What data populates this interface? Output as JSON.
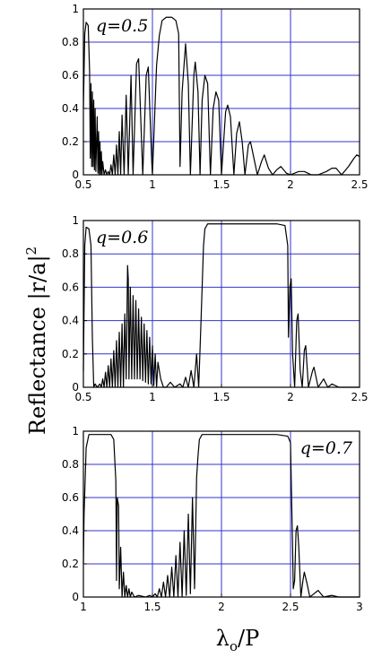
{
  "ylabel": {
    "main": "Reflectance ",
    "expr": "|r/a|",
    "sup": "2"
  },
  "xlabel": {
    "main": "λ",
    "sub": "o",
    "tail": "/P"
  },
  "chart_data": [
    {
      "type": "line",
      "label": "q=0.5",
      "label_position": "top-left",
      "xlim": [
        0.5,
        2.5
      ],
      "ylim": [
        0,
        1
      ],
      "xticks": [
        0.5,
        1,
        1.5,
        2,
        2.5
      ],
      "xtick_labels": [
        "0.5",
        "1",
        "1.5",
        "2",
        "2.5"
      ],
      "yticks": [
        0,
        0.2,
        0.4,
        0.6,
        0.8,
        1
      ],
      "ytick_labels": [
        "0",
        "0.2",
        "0.4",
        "0.6",
        "0.8",
        "1"
      ],
      "grid": true,
      "points": [
        [
          0.5,
          0.4
        ],
        [
          0.51,
          0.85
        ],
        [
          0.52,
          0.92
        ],
        [
          0.535,
          0.9
        ],
        [
          0.545,
          0.62
        ],
        [
          0.55,
          0.1
        ],
        [
          0.555,
          0.55
        ],
        [
          0.56,
          0.05
        ],
        [
          0.565,
          0.5
        ],
        [
          0.57,
          0.05
        ],
        [
          0.575,
          0.45
        ],
        [
          0.58,
          0.03
        ],
        [
          0.585,
          0.4
        ],
        [
          0.59,
          0.02
        ],
        [
          0.6,
          0.35
        ],
        [
          0.605,
          0.01
        ],
        [
          0.61,
          0.26
        ],
        [
          0.615,
          0.0
        ],
        [
          0.62,
          0.2
        ],
        [
          0.625,
          0.0
        ],
        [
          0.63,
          0.14
        ],
        [
          0.635,
          0.0
        ],
        [
          0.64,
          0.08
        ],
        [
          0.65,
          0.0
        ],
        [
          0.66,
          0.03
        ],
        [
          0.67,
          0.0
        ],
        [
          0.68,
          0.02
        ],
        [
          0.69,
          0.0
        ],
        [
          0.7,
          0.06
        ],
        [
          0.71,
          0.0
        ],
        [
          0.72,
          0.12
        ],
        [
          0.73,
          0.0
        ],
        [
          0.74,
          0.18
        ],
        [
          0.75,
          0.0
        ],
        [
          0.76,
          0.26
        ],
        [
          0.77,
          0.0
        ],
        [
          0.78,
          0.36
        ],
        [
          0.795,
          0.0
        ],
        [
          0.81,
          0.48
        ],
        [
          0.825,
          0.0
        ],
        [
          0.845,
          0.6
        ],
        [
          0.86,
          0.0
        ],
        [
          0.885,
          0.67
        ],
        [
          0.9,
          0.7
        ],
        [
          0.93,
          0.0
        ],
        [
          0.955,
          0.6
        ],
        [
          0.97,
          0.65
        ],
        [
          0.995,
          0.08
        ],
        [
          1.0,
          0.0
        ],
        [
          1.03,
          0.66
        ],
        [
          1.05,
          0.84
        ],
        [
          1.07,
          0.93
        ],
        [
          1.1,
          0.95
        ],
        [
          1.14,
          0.95
        ],
        [
          1.17,
          0.93
        ],
        [
          1.19,
          0.85
        ],
        [
          1.2,
          0.05
        ],
        [
          1.215,
          0.5
        ],
        [
          1.24,
          0.79
        ],
        [
          1.26,
          0.55
        ],
        [
          1.275,
          0.0
        ],
        [
          1.3,
          0.6
        ],
        [
          1.31,
          0.68
        ],
        [
          1.33,
          0.5
        ],
        [
          1.345,
          0.0
        ],
        [
          1.36,
          0.45
        ],
        [
          1.38,
          0.6
        ],
        [
          1.4,
          0.55
        ],
        [
          1.42,
          0.0
        ],
        [
          1.44,
          0.4
        ],
        [
          1.46,
          0.5
        ],
        [
          1.48,
          0.45
        ],
        [
          1.5,
          0.0
        ],
        [
          1.53,
          0.38
        ],
        [
          1.545,
          0.42
        ],
        [
          1.565,
          0.35
        ],
        [
          1.59,
          0.0
        ],
        [
          1.61,
          0.25
        ],
        [
          1.63,
          0.32
        ],
        [
          1.65,
          0.2
        ],
        [
          1.67,
          0.0
        ],
        [
          1.695,
          0.18
        ],
        [
          1.71,
          0.2
        ],
        [
          1.735,
          0.1
        ],
        [
          1.76,
          0.0
        ],
        [
          1.79,
          0.08
        ],
        [
          1.81,
          0.12
        ],
        [
          1.84,
          0.04
        ],
        [
          1.87,
          0.0
        ],
        [
          1.9,
          0.03
        ],
        [
          1.93,
          0.05
        ],
        [
          1.97,
          0.01
        ],
        [
          2.0,
          0.0
        ],
        [
          2.06,
          0.02
        ],
        [
          2.1,
          0.02
        ],
        [
          2.15,
          0.0
        ],
        [
          2.2,
          0.0
        ],
        [
          2.26,
          0.02
        ],
        [
          2.3,
          0.04
        ],
        [
          2.33,
          0.04
        ],
        [
          2.37,
          0.0
        ],
        [
          2.42,
          0.05
        ],
        [
          2.46,
          0.1
        ],
        [
          2.48,
          0.12
        ],
        [
          2.5,
          0.11
        ]
      ]
    },
    {
      "type": "line",
      "label": "q=0.6",
      "label_position": "top-left",
      "xlim": [
        0.5,
        2.5
      ],
      "ylim": [
        0,
        1
      ],
      "xticks": [
        0.5,
        1,
        1.5,
        2,
        2.5
      ],
      "xtick_labels": [
        "0.5",
        "1",
        "1.5",
        "2",
        "2.5"
      ],
      "yticks": [
        0,
        0.2,
        0.4,
        0.6,
        0.8,
        1
      ],
      "ytick_labels": [
        "0",
        "0.2",
        "0.4",
        "0.6",
        "0.8",
        "1"
      ],
      "grid": true,
      "points": [
        [
          0.5,
          0.1
        ],
        [
          0.51,
          0.85
        ],
        [
          0.52,
          0.96
        ],
        [
          0.54,
          0.95
        ],
        [
          0.555,
          0.85
        ],
        [
          0.565,
          0.3
        ],
        [
          0.575,
          0.0
        ],
        [
          0.585,
          0.02
        ],
        [
          0.6,
          0.0
        ],
        [
          0.62,
          0.02
        ],
        [
          0.63,
          0.0
        ],
        [
          0.64,
          0.05
        ],
        [
          0.65,
          0.0
        ],
        [
          0.66,
          0.09
        ],
        [
          0.67,
          0.0
        ],
        [
          0.68,
          0.13
        ],
        [
          0.69,
          0.0
        ],
        [
          0.7,
          0.17
        ],
        [
          0.71,
          0.0
        ],
        [
          0.72,
          0.22
        ],
        [
          0.73,
          0.0
        ],
        [
          0.74,
          0.28
        ],
        [
          0.75,
          0.0
        ],
        [
          0.76,
          0.33
        ],
        [
          0.77,
          0.0
        ],
        [
          0.78,
          0.38
        ],
        [
          0.79,
          0.0
        ],
        [
          0.8,
          0.44
        ],
        [
          0.81,
          0.05
        ],
        [
          0.82,
          0.73
        ],
        [
          0.825,
          0.65
        ],
        [
          0.83,
          0.05
        ],
        [
          0.84,
          0.6
        ],
        [
          0.85,
          0.05
        ],
        [
          0.86,
          0.55
        ],
        [
          0.87,
          0.05
        ],
        [
          0.88,
          0.52
        ],
        [
          0.89,
          0.05
        ],
        [
          0.9,
          0.47
        ],
        [
          0.91,
          0.05
        ],
        [
          0.92,
          0.42
        ],
        [
          0.93,
          0.04
        ],
        [
          0.94,
          0.38
        ],
        [
          0.95,
          0.03
        ],
        [
          0.96,
          0.34
        ],
        [
          0.97,
          0.02
        ],
        [
          0.98,
          0.3
        ],
        [
          0.99,
          0.02
        ],
        [
          1.0,
          0.25
        ],
        [
          1.01,
          0.01
        ],
        [
          1.02,
          0.2
        ],
        [
          1.03,
          0.0
        ],
        [
          1.04,
          0.15
        ],
        [
          1.06,
          0.05
        ],
        [
          1.08,
          0.0
        ],
        [
          1.1,
          0.0
        ],
        [
          1.13,
          0.03
        ],
        [
          1.16,
          0.0
        ],
        [
          1.2,
          0.02
        ],
        [
          1.22,
          0.0
        ],
        [
          1.24,
          0.06
        ],
        [
          1.26,
          0.0
        ],
        [
          1.28,
          0.1
        ],
        [
          1.3,
          0.0
        ],
        [
          1.32,
          0.2
        ],
        [
          1.335,
          0.0
        ],
        [
          1.35,
          0.35
        ],
        [
          1.36,
          0.6
        ],
        [
          1.37,
          0.85
        ],
        [
          1.38,
          0.95
        ],
        [
          1.4,
          0.98
        ],
        [
          1.5,
          0.98
        ],
        [
          1.7,
          0.98
        ],
        [
          1.9,
          0.98
        ],
        [
          1.96,
          0.97
        ],
        [
          1.98,
          0.85
        ],
        [
          1.985,
          0.3
        ],
        [
          1.995,
          0.6
        ],
        [
          2.005,
          0.65
        ],
        [
          2.015,
          0.2
        ],
        [
          2.03,
          0.0
        ],
        [
          2.045,
          0.4
        ],
        [
          2.055,
          0.44
        ],
        [
          2.07,
          0.1
        ],
        [
          2.085,
          0.0
        ],
        [
          2.1,
          0.22
        ],
        [
          2.11,
          0.25
        ],
        [
          2.13,
          0.0
        ],
        [
          2.16,
          0.1
        ],
        [
          2.17,
          0.12
        ],
        [
          2.2,
          0.0
        ],
        [
          2.24,
          0.05
        ],
        [
          2.27,
          0.0
        ],
        [
          2.3,
          0.02
        ],
        [
          2.35,
          0.0
        ],
        [
          2.5,
          0.0
        ]
      ]
    },
    {
      "type": "line",
      "label": "q=0.7",
      "label_position": "top-right",
      "xlim": [
        1,
        3
      ],
      "ylim": [
        0,
        1
      ],
      "xticks": [
        1,
        1.5,
        2,
        2.5,
        3
      ],
      "xtick_labels": [
        "1",
        "1.5",
        "2",
        "2.5",
        "3"
      ],
      "yticks": [
        0,
        0.2,
        0.4,
        0.6,
        0.8,
        1
      ],
      "ytick_labels": [
        "0",
        "0.2",
        "0.4",
        "0.6",
        "0.8",
        "1"
      ],
      "grid": true,
      "points": [
        [
          1.0,
          0.2
        ],
        [
          1.005,
          0.5
        ],
        [
          1.02,
          0.9
        ],
        [
          1.04,
          0.98
        ],
        [
          1.1,
          0.98
        ],
        [
          1.2,
          0.98
        ],
        [
          1.22,
          0.95
        ],
        [
          1.235,
          0.7
        ],
        [
          1.24,
          0.1
        ],
        [
          1.245,
          0.6
        ],
        [
          1.255,
          0.55
        ],
        [
          1.26,
          0.05
        ],
        [
          1.27,
          0.3
        ],
        [
          1.28,
          0.0
        ],
        [
          1.29,
          0.15
        ],
        [
          1.3,
          0.0
        ],
        [
          1.31,
          0.07
        ],
        [
          1.32,
          0.0
        ],
        [
          1.33,
          0.05
        ],
        [
          1.34,
          0.0
        ],
        [
          1.35,
          0.03
        ],
        [
          1.37,
          0.0
        ],
        [
          1.4,
          0.01
        ],
        [
          1.45,
          0.0
        ],
        [
          1.48,
          0.01
        ],
        [
          1.5,
          0.0
        ],
        [
          1.52,
          0.02
        ],
        [
          1.535,
          0.0
        ],
        [
          1.55,
          0.05
        ],
        [
          1.565,
          0.0
        ],
        [
          1.58,
          0.09
        ],
        [
          1.595,
          0.0
        ],
        [
          1.61,
          0.13
        ],
        [
          1.625,
          0.0
        ],
        [
          1.64,
          0.18
        ],
        [
          1.655,
          0.0
        ],
        [
          1.67,
          0.25
        ],
        [
          1.685,
          0.0
        ],
        [
          1.7,
          0.33
        ],
        [
          1.715,
          0.0
        ],
        [
          1.73,
          0.4
        ],
        [
          1.745,
          0.01
        ],
        [
          1.76,
          0.5
        ],
        [
          1.775,
          0.02
        ],
        [
          1.79,
          0.6
        ],
        [
          1.805,
          0.05
        ],
        [
          1.82,
          0.72
        ],
        [
          1.83,
          0.85
        ],
        [
          1.84,
          0.95
        ],
        [
          1.86,
          0.98
        ],
        [
          2.0,
          0.98
        ],
        [
          2.2,
          0.98
        ],
        [
          2.4,
          0.98
        ],
        [
          2.48,
          0.97
        ],
        [
          2.5,
          0.93
        ],
        [
          2.515,
          0.3
        ],
        [
          2.52,
          0.05
        ],
        [
          2.53,
          0.1
        ],
        [
          2.54,
          0.4
        ],
        [
          2.55,
          0.43
        ],
        [
          2.56,
          0.3
        ],
        [
          2.575,
          0.0
        ],
        [
          2.59,
          0.1
        ],
        [
          2.6,
          0.15
        ],
        [
          2.62,
          0.08
        ],
        [
          2.64,
          0.0
        ],
        [
          2.67,
          0.02
        ],
        [
          2.7,
          0.04
        ],
        [
          2.74,
          0.0
        ],
        [
          2.8,
          0.01
        ],
        [
          2.85,
          0.0
        ],
        [
          3.0,
          0.0
        ]
      ]
    }
  ]
}
